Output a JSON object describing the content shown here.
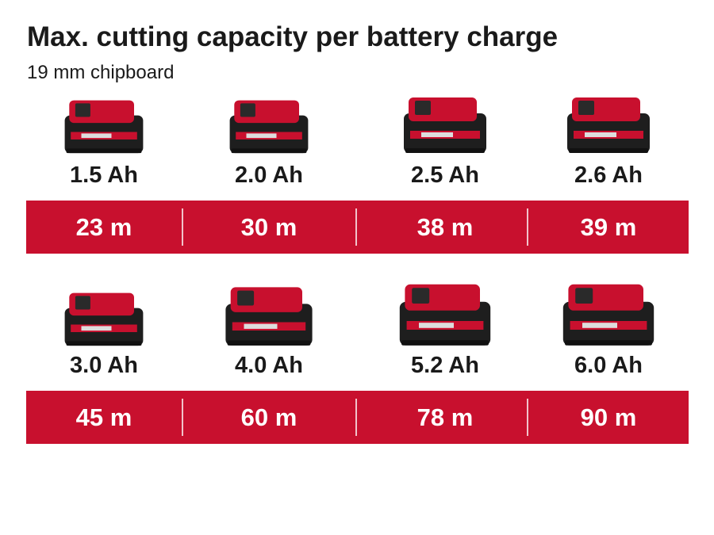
{
  "header": {
    "title": "Max. cutting capacity per battery charge",
    "subtitle": "19 mm chipboard"
  },
  "rows": [
    {
      "batteries": [
        "1.5 Ah",
        "2.0 Ah",
        "2.5 Ah",
        "2.6 Ah"
      ],
      "capacities": [
        "23 m",
        "30 m",
        "38 m",
        "39 m"
      ]
    },
    {
      "batteries": [
        "3.0 Ah",
        "4.0 Ah",
        "5.2 Ah",
        "6.0 Ah"
      ],
      "capacities": [
        "45 m",
        "60 m",
        "78 m",
        "90 m"
      ]
    }
  ]
}
